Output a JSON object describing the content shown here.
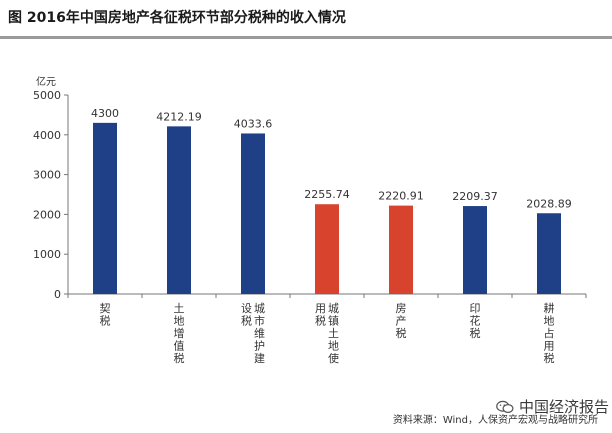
{
  "header": {
    "title": "图   2016年中国房地产各征税环节部分税种的收入情况"
  },
  "footer": {
    "source": "资料来源：Wind，人保资产宏观与战略研究所",
    "watermark": "中国经济报告",
    "watermark_icon": "wechat-icon"
  },
  "chart_data": {
    "type": "bar",
    "unit_label": "亿元",
    "ylim": [
      0,
      5000
    ],
    "yticks": [
      0,
      1000,
      2000,
      3000,
      4000,
      5000
    ],
    "categories": [
      "契税",
      "土地增值税",
      "城市维护建设税",
      "城镇土地使用税",
      "房产税",
      "印花税",
      "耕地占用税"
    ],
    "values": [
      4300,
      4212.19,
      4033.6,
      2255.74,
      2220.91,
      2209.37,
      2028.89
    ],
    "value_labels": [
      "4300",
      "4212.19",
      "4033.6",
      "2255.74",
      "2220.91",
      "2209.37",
      "2028.89"
    ],
    "bar_colors": [
      "#1f3f86",
      "#1f3f86",
      "#1f3f86",
      "#d8432d",
      "#d8432d",
      "#1f3f86",
      "#1f3f86"
    ],
    "colors": {
      "blue": "#1f3f86",
      "red": "#d8432d",
      "axis": "#777777",
      "tick_text": "#333333"
    },
    "grid": false,
    "legend": "none"
  }
}
